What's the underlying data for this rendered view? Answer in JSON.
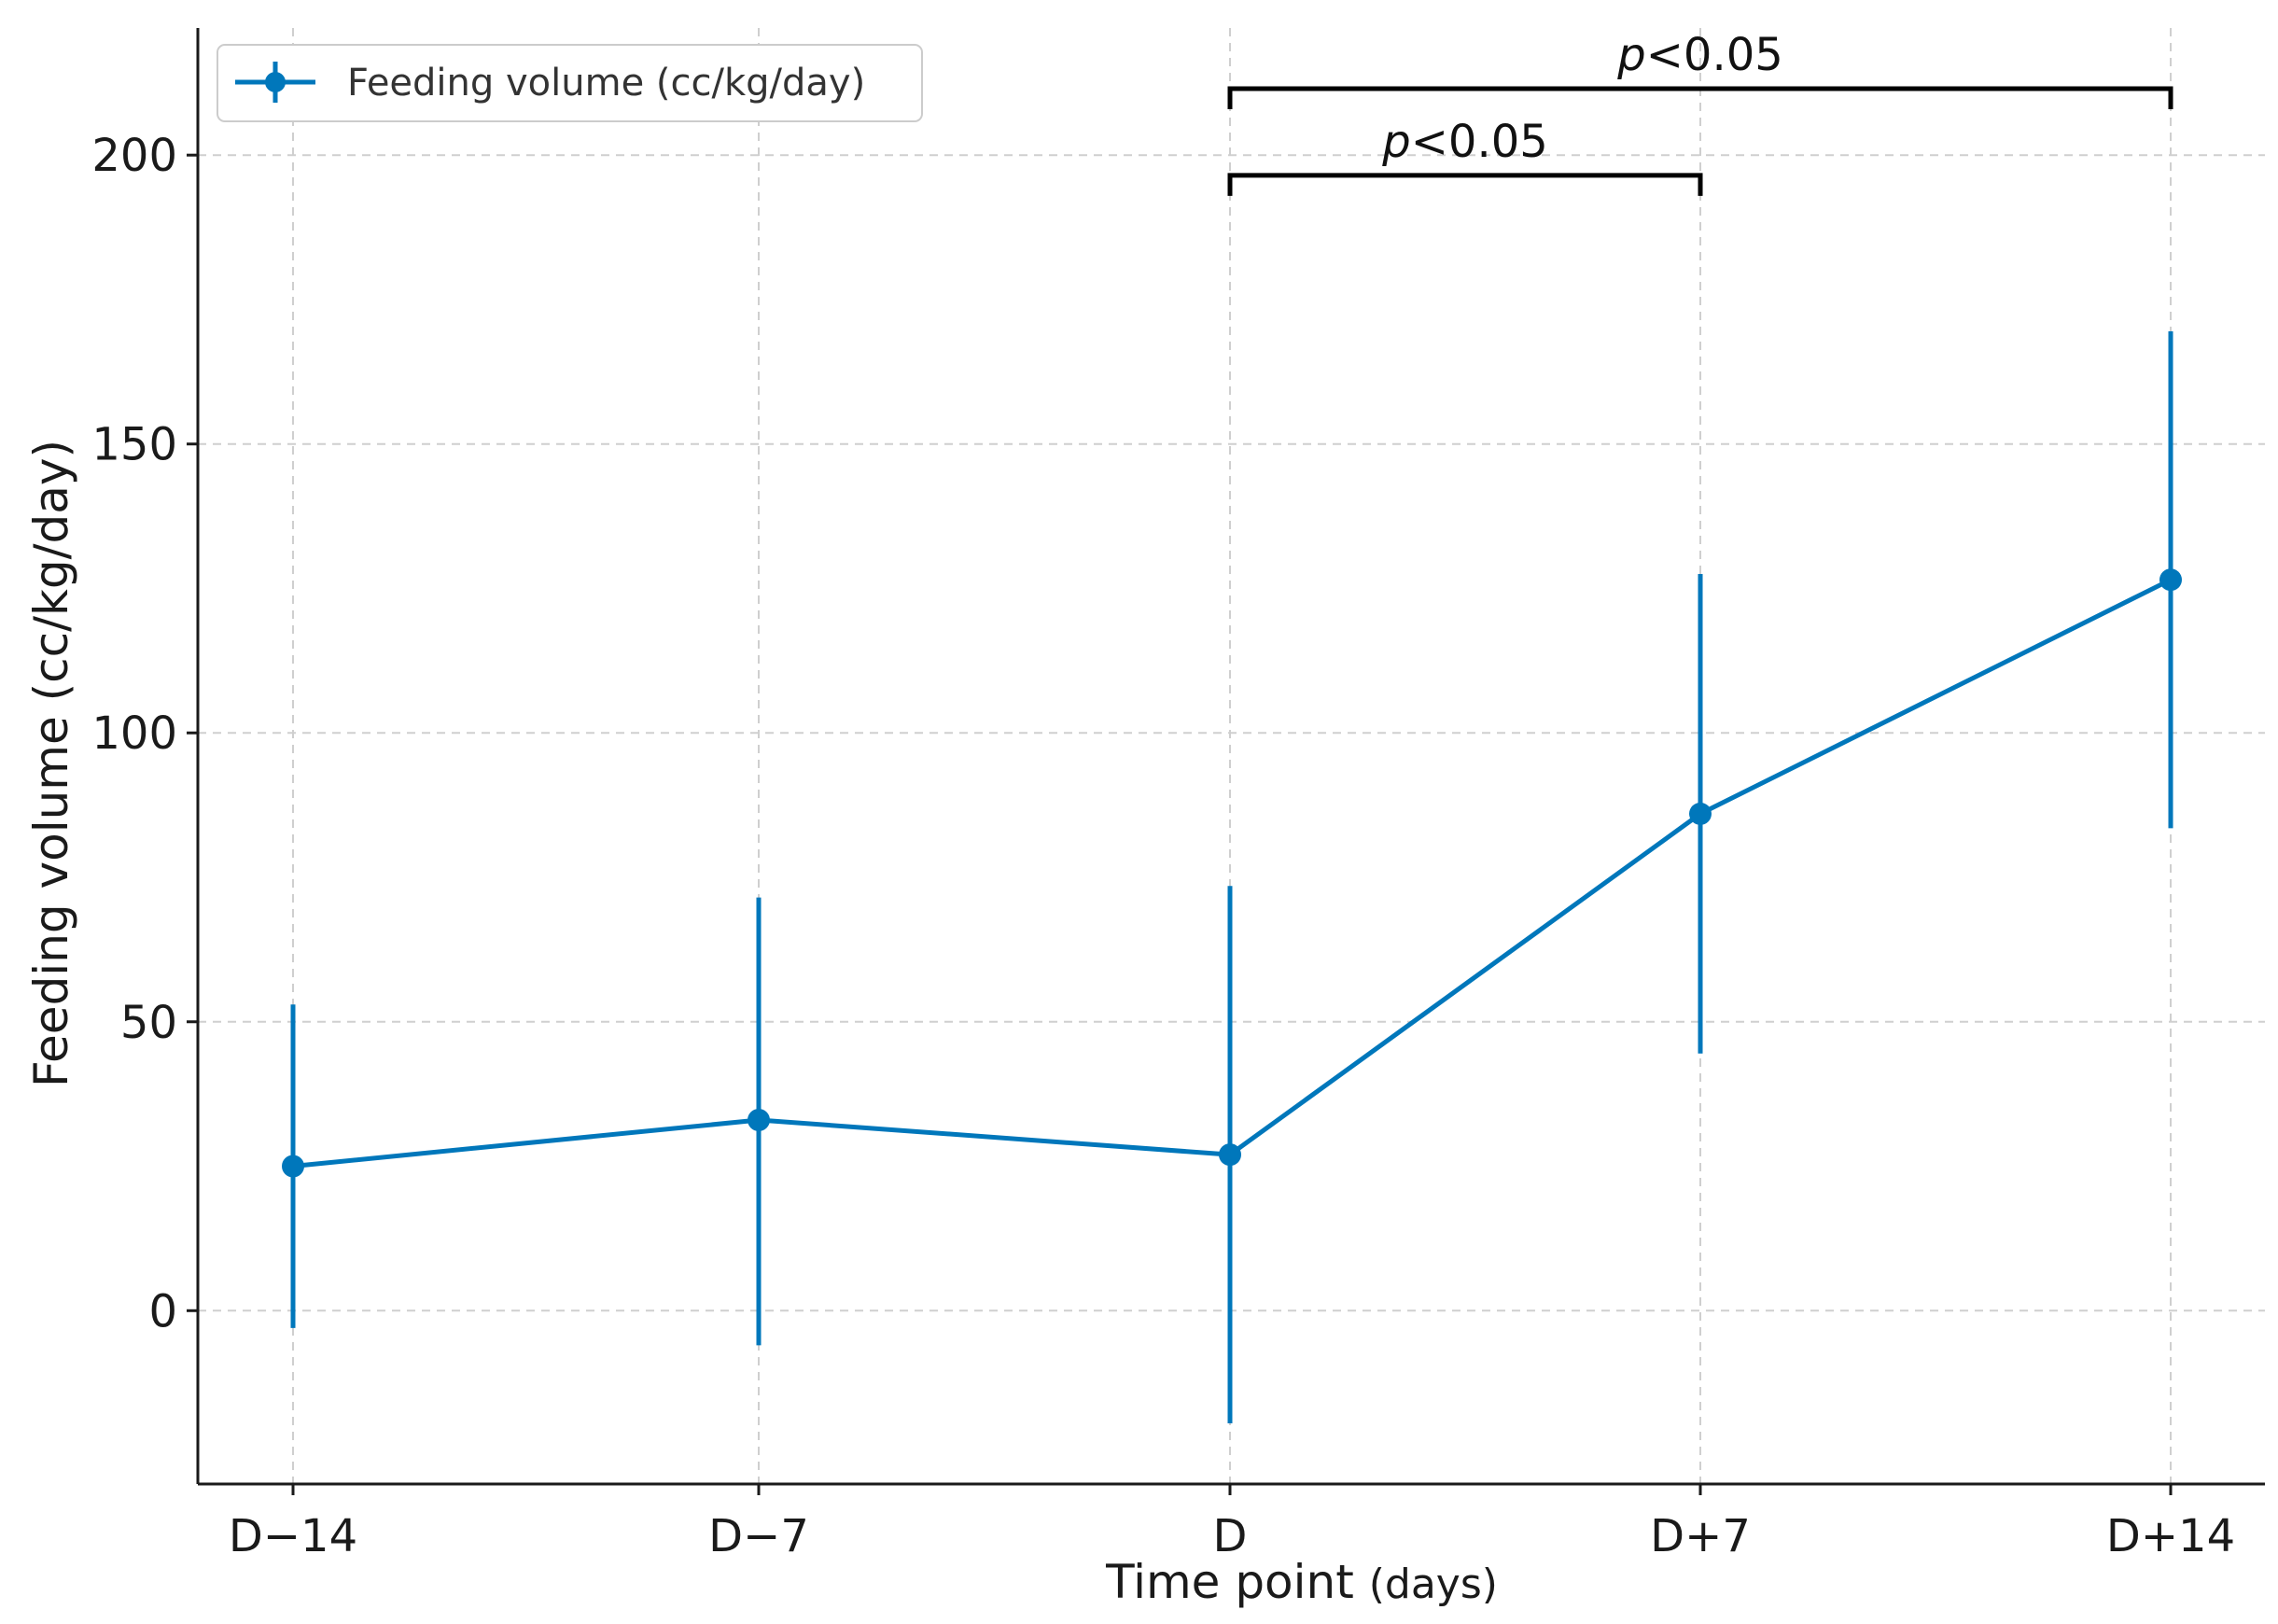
{
  "chart_data": {
    "type": "line",
    "xlabel": "Time point",
    "xlabel_unit": "(days)",
    "ylabel": "Feeding volume (cc/kg/day)",
    "categories": [
      "D−14",
      "D−7",
      "D",
      "D+7",
      "D+14"
    ],
    "ylim": [
      -30,
      222
    ],
    "yticks": [
      0,
      50,
      100,
      150,
      200
    ],
    "grid": true,
    "legend_position": "top-left",
    "series": [
      {
        "name": "Feeding volume (cc/kg/day)",
        "color": "#0077bb",
        "values": [
          25,
          33,
          27,
          86,
          126.5
        ],
        "error_low": [
          -3,
          -6,
          -19.5,
          44.5,
          83.5
        ],
        "error_high": [
          53,
          71.5,
          73.5,
          127.5,
          169.5
        ]
      }
    ],
    "significance": [
      {
        "from": 2,
        "to": 3,
        "level": 196.5,
        "label_italic": "p",
        "label_rest": "<0.05"
      },
      {
        "from": 2,
        "to": 4,
        "level": 211.5,
        "label_italic": "p",
        "label_rest": "<0.05"
      }
    ]
  }
}
